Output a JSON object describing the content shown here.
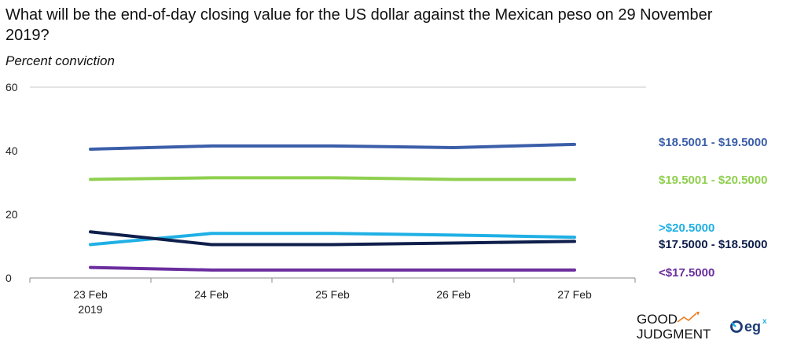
{
  "title": "What will be the end-of-day closing value for the US dollar against the Mexican peso on 29 November 2019?",
  "subtitle": "Percent conviction",
  "chart_data": {
    "type": "line",
    "categories": [
      [
        "23 Feb",
        "2019"
      ],
      [
        "24 Feb"
      ],
      [
        "25 Feb"
      ],
      [
        "26 Feb"
      ],
      [
        "27 Feb"
      ]
    ],
    "ylim": [
      0,
      60
    ],
    "yticks": [
      0,
      20,
      40,
      60
    ],
    "grid": "horizontal-top",
    "legend": "right, at line ends",
    "series": [
      {
        "name": "$18.5001 - $19.5000",
        "color": "#3b5ea9",
        "values": [
          40.5,
          41.5,
          41.5,
          41.0,
          42.0
        ]
      },
      {
        "name": "$19.5001 - $20.5000",
        "color": "#8fcf4f",
        "values": [
          31.0,
          31.5,
          31.5,
          31.0,
          31.0
        ]
      },
      {
        "name": ">$20.5000",
        "color": "#1fb0e5",
        "values": [
          10.5,
          14.0,
          14.0,
          13.5,
          12.8
        ]
      },
      {
        "name": "$17.5000 - $18.5000",
        "color": "#0f1f4b",
        "values": [
          14.5,
          10.5,
          10.5,
          11.0,
          11.5
        ]
      },
      {
        "name": "<$17.5000",
        "color": "#6a2d9e",
        "values": [
          3.3,
          2.5,
          2.5,
          2.5,
          2.5
        ]
      }
    ]
  },
  "logos": {
    "good_judgment_line1": "GOOD",
    "good_judgment_line2": "JUDGMENT",
    "egx_text": "eg",
    "egx_sup": "x",
    "accent_color": "#ee7d1e"
  }
}
